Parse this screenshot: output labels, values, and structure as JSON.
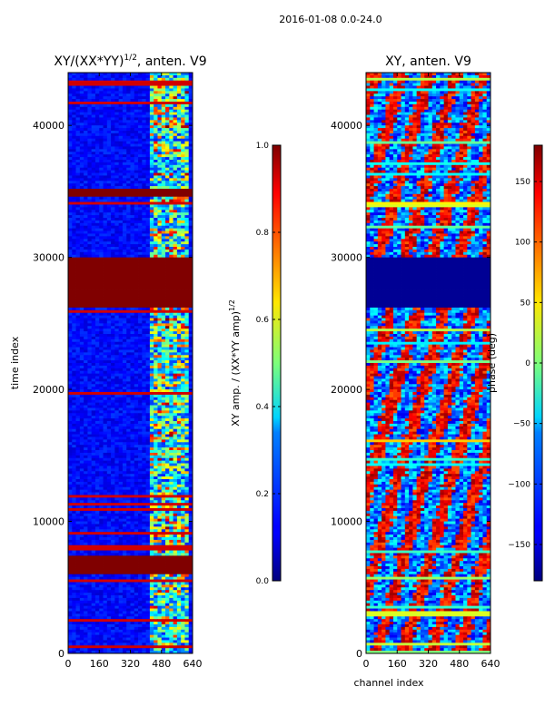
{
  "figure": {
    "suptitle": "2016-01-08 0.0-24.0"
  },
  "chart_data": [
    {
      "type": "heatmap",
      "title": "XY/(XX*YY)^{1/2}, anten. V9",
      "title_main": "XY/(XX*YY)",
      "title_exponent": "1/2",
      "title_suffix": ", anten. V9",
      "xlabel": "",
      "ylabel": "time index",
      "xlim": [
        0,
        640
      ],
      "ylim": [
        0,
        44000
      ],
      "x_ticks": [
        0,
        160,
        320,
        480,
        640
      ],
      "y_ticks": [
        0,
        10000,
        20000,
        30000,
        40000
      ],
      "colormap": "jet",
      "quantity": "normalized XY amplitude",
      "saturated_row_bands": [
        [
          6000,
          7300
        ],
        [
          26200,
          29900
        ],
        [
          34600,
          35100
        ]
      ],
      "bright_channel_range": [
        420,
        640
      ],
      "colorbar": {
        "label": "XY amp. / (XX*YY amp)^{1/2}",
        "label_main": "XY amp. / (XX*YY amp)",
        "label_exponent": "1/2",
        "range": [
          0.0,
          1.0
        ],
        "ticks": [
          0.0,
          0.2,
          0.4,
          0.6,
          0.8,
          1.0
        ],
        "tick_labels": [
          "0.0",
          "0.2",
          "0.4",
          "0.6",
          "0.8",
          "1.0"
        ]
      }
    },
    {
      "type": "heatmap",
      "title": "XY, anten. V9",
      "xlabel": "channel index",
      "ylabel": "",
      "xlim": [
        0,
        640
      ],
      "ylim": [
        0,
        44000
      ],
      "x_ticks": [
        0,
        160,
        320,
        480,
        640
      ],
      "y_ticks": [
        0,
        10000,
        20000,
        30000,
        40000
      ],
      "colormap": "jet",
      "quantity": "XY phase (degrees)",
      "low_phase_band": [
        26200,
        29900
      ],
      "colorbar": {
        "label": "phase (deg)",
        "range": [
          -180,
          180
        ],
        "ticks": [
          -150,
          -100,
          -50,
          0,
          50,
          100,
          150
        ],
        "tick_labels": [
          "−150",
          "−100",
          "−50",
          "0",
          "50",
          "100",
          "150"
        ]
      }
    }
  ]
}
